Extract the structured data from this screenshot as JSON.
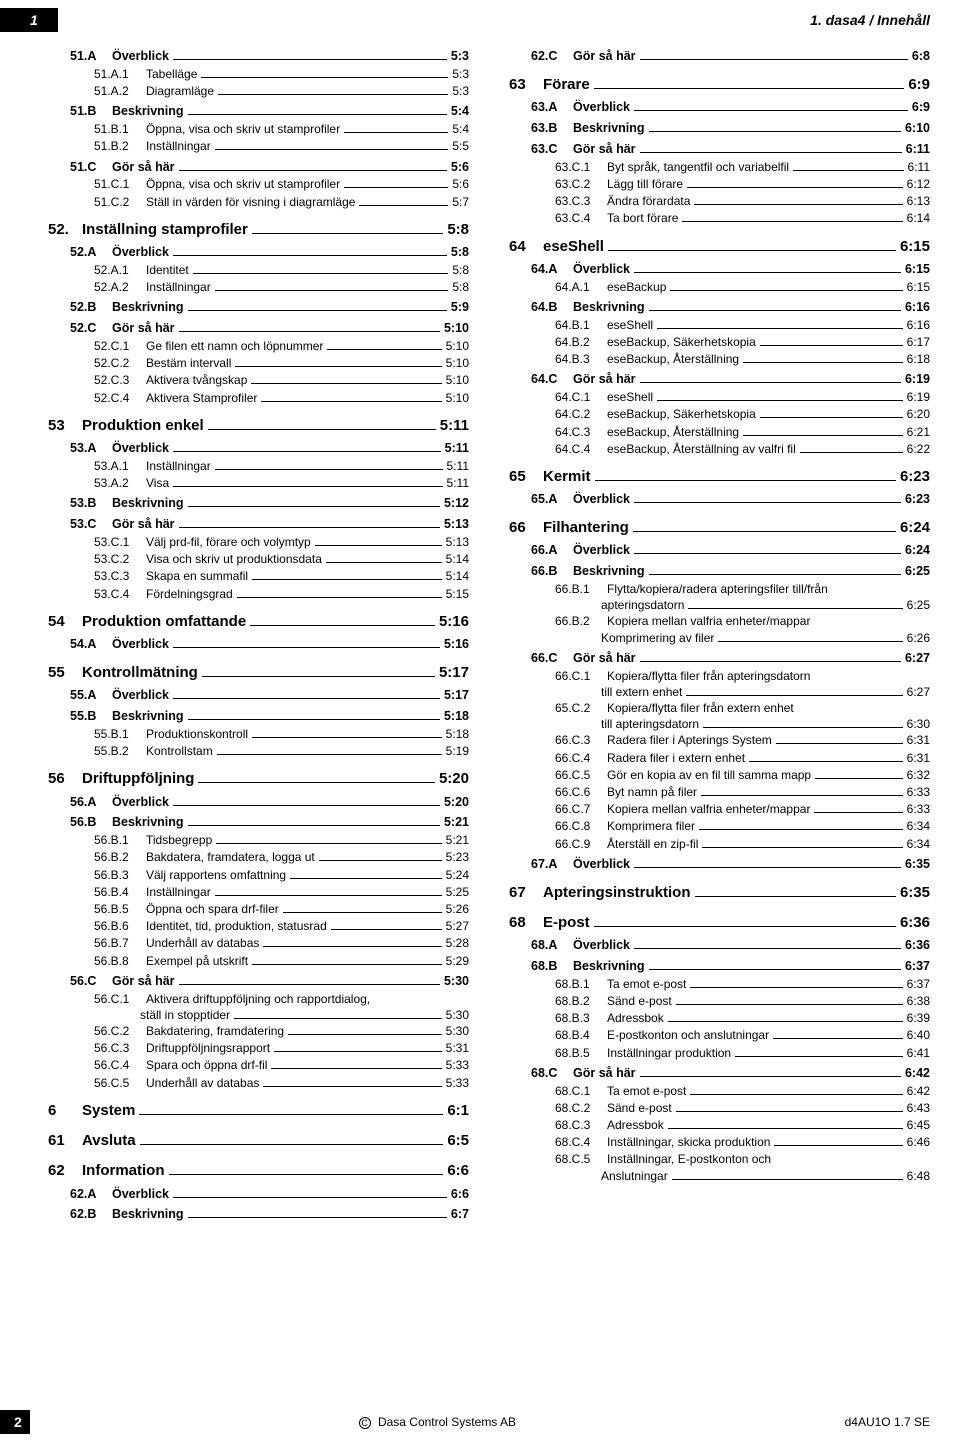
{
  "header": {
    "page_num": "1",
    "breadcrumb": "1. dasa4  / Innehåll"
  },
  "footer": {
    "page": "2",
    "center": "Dasa Control Systems AB",
    "right": "d4AU1O 1.7 SE"
  },
  "left": [
    {
      "l": 2,
      "n": "51.A",
      "t": "Överblick",
      "p": "5:3"
    },
    {
      "l": 3,
      "n": "51.A.1",
      "t": "Tabelläge",
      "p": "5:3"
    },
    {
      "l": 3,
      "n": "51.A.2",
      "t": "Diagramläge",
      "p": "5:3"
    },
    {
      "l": 2,
      "n": "51.B",
      "t": "Beskrivning",
      "p": "5:4"
    },
    {
      "l": 3,
      "n": "51.B.1",
      "t": "Öppna, visa och skriv ut stamprofiler",
      "p": "5:4"
    },
    {
      "l": 3,
      "n": "51.B.2",
      "t": "Inställningar",
      "p": "5:5"
    },
    {
      "l": 2,
      "n": "51.C",
      "t": "Gör så här",
      "p": "5:6"
    },
    {
      "l": 3,
      "n": "51.C.1",
      "t": "Öppna, visa och skriv ut stamprofiler",
      "p": "5:6"
    },
    {
      "l": 3,
      "n": "51.C.2",
      "t": "Ställ in värden för visning i diagramläge",
      "p": "5:7"
    },
    {
      "l": 1,
      "n": "52.",
      "t": "Inställning stamprofiler",
      "p": "5:8"
    },
    {
      "l": 2,
      "n": "52.A",
      "t": "Överblick",
      "p": "5:8"
    },
    {
      "l": 3,
      "n": "52.A.1",
      "t": "Identitet",
      "p": "5:8"
    },
    {
      "l": 3,
      "n": "52.A.2",
      "t": "Inställningar",
      "p": "5:8"
    },
    {
      "l": 2,
      "n": "52.B",
      "t": "Beskrivning",
      "p": "5:9"
    },
    {
      "l": 2,
      "n": "52.C",
      "t": "Gör så här",
      "p": "5:10"
    },
    {
      "l": 3,
      "n": "52.C.1",
      "t": "Ge filen ett namn och löpnummer",
      "p": "5:10"
    },
    {
      "l": 3,
      "n": "52.C.2",
      "t": "Bestäm intervall",
      "p": "5:10"
    },
    {
      "l": 3,
      "n": "52.C.3",
      "t": "Aktivera tvångskap",
      "p": "5:10"
    },
    {
      "l": 3,
      "n": "52.C.4",
      "t": "Aktivera Stamprofiler",
      "p": "5:10"
    },
    {
      "l": 1,
      "n": "53",
      "t": "Produktion enkel",
      "p": "5:11"
    },
    {
      "l": 2,
      "n": "53.A",
      "t": "Överblick",
      "p": "5:11"
    },
    {
      "l": 3,
      "n": "53.A.1",
      "t": "Inställningar",
      "p": "5:11"
    },
    {
      "l": 3,
      "n": "53.A.2",
      "t": "Visa",
      "p": "5:11"
    },
    {
      "l": 2,
      "n": "53.B",
      "t": "Beskrivning",
      "p": "5:12"
    },
    {
      "l": 2,
      "n": "53.C",
      "t": "Gör så här",
      "p": "5:13"
    },
    {
      "l": 3,
      "n": "53.C.1",
      "t": "Välj prd-fil, förare och volymtyp",
      "p": "5:13"
    },
    {
      "l": 3,
      "n": "53.C.2",
      "t": "Visa och skriv ut produktionsdata",
      "p": "5:14"
    },
    {
      "l": 3,
      "n": "53.C.3",
      "t": "Skapa en summafil",
      "p": "5:14"
    },
    {
      "l": 3,
      "n": "53.C.4",
      "t": "Fördelningsgrad",
      "p": "5:15"
    },
    {
      "l": 1,
      "n": "54",
      "t": "Produktion omfattande",
      "p": "5:16"
    },
    {
      "l": 2,
      "n": "54.A",
      "t": "Överblick",
      "p": "5:16"
    },
    {
      "l": 1,
      "n": "55",
      "t": "Kontrollmätning",
      "p": "5:17"
    },
    {
      "l": 2,
      "n": "55.A",
      "t": "Överblick",
      "p": "5:17"
    },
    {
      "l": 2,
      "n": "55.B",
      "t": "Beskrivning",
      "p": "5:18"
    },
    {
      "l": 3,
      "n": "55.B.1",
      "t": "Produktionskontroll",
      "p": "5:18"
    },
    {
      "l": 3,
      "n": "55.B.2",
      "t": "Kontrollstam",
      "p": "5:19"
    },
    {
      "l": 1,
      "n": "56",
      "t": "Driftuppföljning",
      "p": "5:20"
    },
    {
      "l": 2,
      "n": "56.A",
      "t": "Överblick",
      "p": "5:20"
    },
    {
      "l": 2,
      "n": "56.B",
      "t": "Beskrivning",
      "p": "5:21"
    },
    {
      "l": 3,
      "n": "56.B.1",
      "t": "Tidsbegrepp",
      "p": "5:21"
    },
    {
      "l": 3,
      "n": "56.B.2",
      "t": "Bakdatera, framdatera, logga ut",
      "p": "5:23"
    },
    {
      "l": 3,
      "n": "56.B.3",
      "t": "Välj rapportens omfattning",
      "p": "5:24"
    },
    {
      "l": 3,
      "n": "56.B.4",
      "t": "Inställningar",
      "p": "5:25"
    },
    {
      "l": 3,
      "n": "56.B.5",
      "t": "Öppna och spara drf-filer",
      "p": "5:26"
    },
    {
      "l": 3,
      "n": "56.B.6",
      "t": "Identitet, tid, produktion, statusrad",
      "p": "5:27"
    },
    {
      "l": 3,
      "n": "56.B.7",
      "t": "Underhåll av databas",
      "p": "5:28"
    },
    {
      "l": 3,
      "n": "56.B.8",
      "t": "Exempel på utskrift",
      "p": "5:29"
    },
    {
      "l": 2,
      "n": "56.C",
      "t": "Gör så här",
      "p": "5:30"
    },
    {
      "l": 3,
      "n": "56.C.1",
      "t": "Aktivera driftuppföljning och rapportdialog,",
      "t2": "ställ in stopptider",
      "p": "5:30",
      "wrap": true
    },
    {
      "l": 3,
      "n": "56.C.2",
      "t": "Bakdatering, framdatering",
      "p": "5:30"
    },
    {
      "l": 3,
      "n": "56.C.3",
      "t": "Driftuppföljningsrapport",
      "p": "5:31"
    },
    {
      "l": 3,
      "n": "56.C.4",
      "t": "Spara och öppna drf-fil",
      "p": "5:33"
    },
    {
      "l": 3,
      "n": "56.C.5",
      "t": "Underhåll av databas",
      "p": "5:33"
    },
    {
      "l": 1,
      "n": "6",
      "t": "System",
      "p": "6:1"
    },
    {
      "l": 1,
      "n": "61",
      "t": "Avsluta",
      "p": "6:5"
    },
    {
      "l": 1,
      "n": "62",
      "t": "Information",
      "p": "6:6"
    },
    {
      "l": 2,
      "n": "62.A",
      "t": "Överblick",
      "p": "6:6"
    },
    {
      "l": 2,
      "n": "62.B",
      "t": "Beskrivning",
      "p": "6:7"
    }
  ],
  "right": [
    {
      "l": 2,
      "n": "62.C",
      "t": "Gör så här",
      "p": "6:8"
    },
    {
      "l": 1,
      "n": "63",
      "t": "Förare",
      "p": "6:9"
    },
    {
      "l": 2,
      "n": "63.A",
      "t": "Överblick",
      "p": "6:9"
    },
    {
      "l": 2,
      "n": "63.B",
      "t": "Beskrivning",
      "p": "6:10"
    },
    {
      "l": 2,
      "n": "63.C",
      "t": "Gör så här",
      "p": "6:11"
    },
    {
      "l": 3,
      "n": "63.C.1",
      "t": "Byt språk, tangentfil och variabelfil",
      "p": "6:11"
    },
    {
      "l": 3,
      "n": "63.C.2",
      "t": "Lägg till förare",
      "p": "6:12"
    },
    {
      "l": 3,
      "n": "63.C.3",
      "t": "Ändra förardata",
      "p": "6:13"
    },
    {
      "l": 3,
      "n": "63.C.4",
      "t": "Ta bort förare",
      "p": "6:14"
    },
    {
      "l": 1,
      "n": "64",
      "t": "eseShell",
      "p": "6:15"
    },
    {
      "l": 2,
      "n": "64.A",
      "t": "Överblick",
      "p": "6:15"
    },
    {
      "l": 3,
      "n": "64.A.1",
      "t": "eseBackup",
      "p": "6:15"
    },
    {
      "l": 2,
      "n": "64.B",
      "t": "Beskrivning",
      "p": "6:16"
    },
    {
      "l": 3,
      "n": "64.B.1",
      "t": "eseShell",
      "p": "6:16"
    },
    {
      "l": 3,
      "n": "64.B.2",
      "t": "eseBackup, Säkerhetskopia",
      "p": "6:17"
    },
    {
      "l": 3,
      "n": "64.B.3",
      "t": "eseBackup, Återställning",
      "p": "6:18"
    },
    {
      "l": 2,
      "n": "64.C",
      "t": "Gör så här",
      "p": "6:19"
    },
    {
      "l": 3,
      "n": "64.C.1",
      "t": "eseShell",
      "p": "6:19"
    },
    {
      "l": 3,
      "n": "64.C.2",
      "t": "eseBackup, Säkerhetskopia",
      "p": "6:20"
    },
    {
      "l": 3,
      "n": "64.C.3",
      "t": "eseBackup, Återställning",
      "p": "6:21"
    },
    {
      "l": 3,
      "n": "64.C.4",
      "t": "eseBackup, Återställning av valfri fil",
      "p": "6:22"
    },
    {
      "l": 1,
      "n": "65",
      "t": "Kermit",
      "p": "6:23"
    },
    {
      "l": 2,
      "n": "65.A",
      "t": "Överblick",
      "p": "6:23"
    },
    {
      "l": 1,
      "n": "66",
      "t": "Filhantering",
      "p": "6:24"
    },
    {
      "l": 2,
      "n": "66.A",
      "t": "Överblick",
      "p": "6:24"
    },
    {
      "l": 2,
      "n": "66.B",
      "t": "Beskrivning",
      "p": "6:25"
    },
    {
      "l": 3,
      "n": "66.B.1",
      "t": "Flytta/kopiera/radera apteringsfiler till/från",
      "t2": "apteringsdatorn",
      "p": "6:25",
      "wrap": true
    },
    {
      "l": 3,
      "n": "66.B.2",
      "t": "Kopiera mellan valfria enheter/mappar",
      "t2": "Komprimering av filer",
      "p": "6:26",
      "wrap": true
    },
    {
      "l": 2,
      "n": "66.C",
      "t": "Gör så här",
      "p": "6:27"
    },
    {
      "l": 3,
      "n": "66.C.1",
      "t": "Kopiera/flytta filer från apteringsdatorn",
      "t2": "till extern enhet",
      "p": "6:27",
      "wrap": true
    },
    {
      "l": 3,
      "n": "65.C.2",
      "t": "Kopiera/flytta filer från   extern enhet",
      "t2": "till apteringsdatorn",
      "p": "6:30",
      "wrap": true
    },
    {
      "l": 3,
      "n": "66.C.3",
      "t": "Radera filer i Apterings System",
      "p": "6:31"
    },
    {
      "l": 3,
      "n": "66.C.4",
      "t": "Radera filer i extern enhet",
      "p": "6:31"
    },
    {
      "l": 3,
      "n": "66.C.5",
      "t": "Gör en kopia av en fil till samma mapp",
      "p": "6:32"
    },
    {
      "l": 3,
      "n": "66.C.6",
      "t": "Byt namn på filer",
      "p": "6:33"
    },
    {
      "l": 3,
      "n": "66.C.7",
      "t": "Kopiera mellan valfria enheter/mappar",
      "p": "6:33"
    },
    {
      "l": 3,
      "n": "66.C.8",
      "t": "Komprimera filer",
      "p": "6:34"
    },
    {
      "l": 3,
      "n": "66.C.9",
      "t": "Återställ en zip-fil",
      "p": "6:34"
    },
    {
      "l": 2,
      "n": "67.A",
      "t": "Överblick",
      "p": "6:35"
    },
    {
      "l": 1,
      "n": "67",
      "t": "Apteringsinstruktion",
      "p": "6:35"
    },
    {
      "l": 1,
      "n": "68",
      "t": "E-post",
      "p": "6:36"
    },
    {
      "l": 2,
      "n": "68.A",
      "t": "Överblick",
      "p": "6:36"
    },
    {
      "l": 2,
      "n": "68.B",
      "t": "Beskrivning",
      "p": "6:37"
    },
    {
      "l": 3,
      "n": "68.B.1",
      "t": "Ta emot e-post",
      "p": "6:37"
    },
    {
      "l": 3,
      "n": "68.B.2",
      "t": "Sänd e-post",
      "p": "6:38"
    },
    {
      "l": 3,
      "n": "68.B.3",
      "t": "Adressbok",
      "p": "6:39"
    },
    {
      "l": 3,
      "n": "68.B.4",
      "t": "E-postkonton och anslutningar",
      "p": "6:40"
    },
    {
      "l": 3,
      "n": "68.B.5",
      "t": "Inställningar produktion",
      "p": "6:41"
    },
    {
      "l": 2,
      "n": "68.C",
      "t": "Gör så här",
      "p": "6:42"
    },
    {
      "l": 3,
      "n": "68.C.1",
      "t": "Ta emot e-post",
      "p": "6:42"
    },
    {
      "l": 3,
      "n": "68.C.2",
      "t": "Sänd e-post",
      "p": "6:43"
    },
    {
      "l": 3,
      "n": "68.C.3",
      "t": "Adressbok",
      "p": "6:45"
    },
    {
      "l": 3,
      "n": "68.C.4",
      "t": "Inställningar, skicka produktion",
      "p": "6:46"
    },
    {
      "l": 3,
      "n": "68.C.5",
      "t": "Inställningar, E-postkonton och",
      "t2": "Anslutningar",
      "p": "6:48",
      "wrap": true
    }
  ]
}
